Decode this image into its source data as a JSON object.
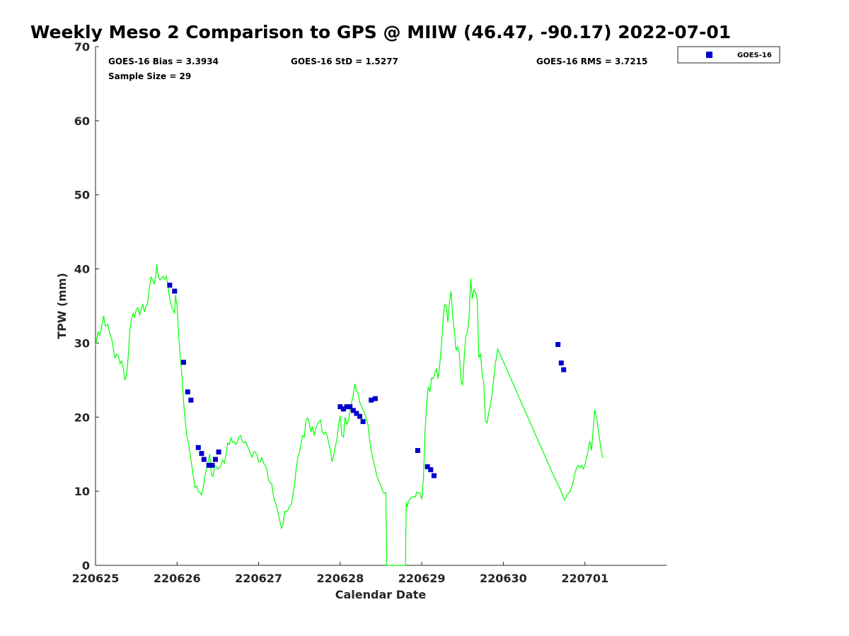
{
  "chart_data": {
    "type": "line",
    "title": "Weekly Meso 2 Comparison to GPS @ MIIW (46.47, -90.17) 2022-07-01",
    "xlabel": "Calendar Date",
    "ylabel": "TPW (mm)",
    "xlim": [
      0,
      7
    ],
    "ylim": [
      0,
      70
    ],
    "x_ticks": [
      0,
      1,
      2,
      3,
      4,
      5,
      6
    ],
    "x_tick_labels": [
      "220625",
      "220626",
      "220627",
      "220628",
      "220629",
      "220630",
      "220701"
    ],
    "y_ticks": [
      0,
      10,
      20,
      30,
      40,
      50,
      60,
      70
    ],
    "y_tick_labels": [
      "0",
      "10",
      "20",
      "30",
      "40",
      "50",
      "60",
      "70"
    ],
    "grid": false,
    "legend": {
      "position": "top-right-outside",
      "entries": [
        "GOES-16"
      ]
    },
    "stats": {
      "bias": "GOES-16 Bias = 3.3934",
      "std": "GOES-16 StD = 1.5277",
      "rms": "GOES-16 RMS = 3.7215",
      "sample": "Sample Size = 29"
    },
    "colors": {
      "gps_line": "#00ff00",
      "goes": "#0000cc"
    },
    "series": [
      {
        "marker": "line",
        "points": [
          [
            0.0,
            29.6
          ],
          [
            0.03,
            31.5
          ],
          [
            0.05,
            31.0
          ],
          [
            0.08,
            32.4
          ],
          [
            0.1,
            33.7
          ],
          [
            0.12,
            32.3
          ],
          [
            0.15,
            32.5
          ],
          [
            0.18,
            31.0
          ],
          [
            0.2,
            30.5
          ],
          [
            0.22,
            29.0
          ],
          [
            0.24,
            28.0
          ],
          [
            0.26,
            28.5
          ],
          [
            0.28,
            28.3
          ],
          [
            0.3,
            27.2
          ],
          [
            0.32,
            27.6
          ],
          [
            0.34,
            26.6
          ],
          [
            0.36,
            25.0
          ],
          [
            0.38,
            25.6
          ],
          [
            0.4,
            28.0
          ],
          [
            0.42,
            31.5
          ],
          [
            0.44,
            33.2
          ],
          [
            0.46,
            34.0
          ],
          [
            0.48,
            33.5
          ],
          [
            0.5,
            34.5
          ],
          [
            0.52,
            34.8
          ],
          [
            0.54,
            33.8
          ],
          [
            0.56,
            34.5
          ],
          [
            0.58,
            35.2
          ],
          [
            0.6,
            34.2
          ],
          [
            0.62,
            35.0
          ],
          [
            0.64,
            35.5
          ],
          [
            0.66,
            37.5
          ],
          [
            0.68,
            38.9
          ],
          [
            0.7,
            38.5
          ],
          [
            0.72,
            38.0
          ],
          [
            0.74,
            39.2
          ],
          [
            0.75,
            40.6
          ],
          [
            0.77,
            39.0
          ],
          [
            0.79,
            38.5
          ],
          [
            0.81,
            38.8
          ],
          [
            0.83,
            39.0
          ],
          [
            0.85,
            38.6
          ],
          [
            0.87,
            39.0
          ],
          [
            0.89,
            37.5
          ],
          [
            0.91,
            36.0
          ],
          [
            0.93,
            35.0
          ],
          [
            0.95,
            34.5
          ],
          [
            0.97,
            34.0
          ],
          [
            0.98,
            36.5
          ],
          [
            1.0,
            35.0
          ],
          [
            1.02,
            31.0
          ],
          [
            1.04,
            28.0
          ],
          [
            1.06,
            25.5
          ],
          [
            1.08,
            22.0
          ],
          [
            1.1,
            19.5
          ],
          [
            1.12,
            17.5
          ],
          [
            1.14,
            16.5
          ],
          [
            1.16,
            15.0
          ],
          [
            1.18,
            13.5
          ],
          [
            1.2,
            12.0
          ],
          [
            1.22,
            10.5
          ],
          [
            1.24,
            10.7
          ],
          [
            1.26,
            10.0
          ],
          [
            1.28,
            9.8
          ],
          [
            1.3,
            9.5
          ],
          [
            1.32,
            10.5
          ],
          [
            1.34,
            12.0
          ],
          [
            1.36,
            13.0
          ],
          [
            1.38,
            14.0
          ],
          [
            1.4,
            15.0
          ],
          [
            1.42,
            12.3
          ],
          [
            1.44,
            12.0
          ],
          [
            1.46,
            13.5
          ],
          [
            1.48,
            13.3
          ],
          [
            1.5,
            13.0
          ],
          [
            1.52,
            13.2
          ],
          [
            1.54,
            13.5
          ],
          [
            1.56,
            14.2
          ],
          [
            1.58,
            13.8
          ],
          [
            1.6,
            15.0
          ],
          [
            1.62,
            16.5
          ],
          [
            1.64,
            16.3
          ],
          [
            1.66,
            17.2
          ],
          [
            1.68,
            16.6
          ],
          [
            1.7,
            16.7
          ],
          [
            1.72,
            16.3
          ],
          [
            1.74,
            16.7
          ],
          [
            1.76,
            17.4
          ],
          [
            1.78,
            17.5
          ],
          [
            1.8,
            16.7
          ],
          [
            1.82,
            16.5
          ],
          [
            1.84,
            16.7
          ],
          [
            1.86,
            16.2
          ],
          [
            1.88,
            15.7
          ],
          [
            1.9,
            15.0
          ],
          [
            1.92,
            14.6
          ],
          [
            1.94,
            15.3
          ],
          [
            1.96,
            15.3
          ],
          [
            1.98,
            14.9
          ],
          [
            2.0,
            13.9
          ],
          [
            2.02,
            14.0
          ],
          [
            2.04,
            14.5
          ],
          [
            2.06,
            13.8
          ],
          [
            2.08,
            13.5
          ],
          [
            2.1,
            13.0
          ],
          [
            2.12,
            11.5
          ],
          [
            2.14,
            11.2
          ],
          [
            2.16,
            11.0
          ],
          [
            2.18,
            9.5
          ],
          [
            2.2,
            8.6
          ],
          [
            2.22,
            8.0
          ],
          [
            2.24,
            7.0
          ],
          [
            2.26,
            6.0
          ],
          [
            2.28,
            5.0
          ],
          [
            2.3,
            5.6
          ],
          [
            2.32,
            7.3
          ],
          [
            2.34,
            7.2
          ],
          [
            2.36,
            7.5
          ],
          [
            2.38,
            8.0
          ],
          [
            2.4,
            8.2
          ],
          [
            2.42,
            9.5
          ],
          [
            2.44,
            11.0
          ],
          [
            2.46,
            13.0
          ],
          [
            2.48,
            14.5
          ],
          [
            2.5,
            15.2
          ],
          [
            2.52,
            16.5
          ],
          [
            2.54,
            17.5
          ],
          [
            2.56,
            17.3
          ],
          [
            2.58,
            19.5
          ],
          [
            2.6,
            19.9
          ],
          [
            2.62,
            19.2
          ],
          [
            2.64,
            18.0
          ],
          [
            2.66,
            18.7
          ],
          [
            2.68,
            17.5
          ],
          [
            2.7,
            18.5
          ],
          [
            2.72,
            19.0
          ],
          [
            2.74,
            19.4
          ],
          [
            2.76,
            19.6
          ],
          [
            2.78,
            18.0
          ],
          [
            2.8,
            17.7
          ],
          [
            2.82,
            18.0
          ],
          [
            2.84,
            17.5
          ],
          [
            2.86,
            16.5
          ],
          [
            2.88,
            15.5
          ],
          [
            2.9,
            14.0
          ],
          [
            2.92,
            14.8
          ],
          [
            2.94,
            16.0
          ],
          [
            2.96,
            17.0
          ],
          [
            2.98,
            19.0
          ],
          [
            3.0,
            20.2
          ],
          [
            3.02,
            17.5
          ],
          [
            3.04,
            17.3
          ],
          [
            3.06,
            20.0
          ],
          [
            3.08,
            19.0
          ],
          [
            3.1,
            19.5
          ],
          [
            3.12,
            21.0
          ],
          [
            3.14,
            22.0
          ],
          [
            3.16,
            23.0
          ],
          [
            3.18,
            24.5
          ],
          [
            3.2,
            23.5
          ],
          [
            3.22,
            23.2
          ],
          [
            3.24,
            22.0
          ],
          [
            3.26,
            21.5
          ],
          [
            3.28,
            21.0
          ],
          [
            3.3,
            20.5
          ],
          [
            3.32,
            19.8
          ],
          [
            3.34,
            19.0
          ],
          [
            3.36,
            17.0
          ],
          [
            3.38,
            15.5
          ],
          [
            3.4,
            14.5
          ],
          [
            3.42,
            13.5
          ],
          [
            3.44,
            12.5
          ],
          [
            3.46,
            11.7
          ],
          [
            3.48,
            11.2
          ],
          [
            3.5,
            10.8
          ],
          [
            3.52,
            10.0
          ],
          [
            3.54,
            9.7
          ],
          [
            3.56,
            9.8
          ],
          [
            3.57,
            0.0
          ],
          [
            3.8,
            0.0
          ],
          [
            3.81,
            8.5
          ],
          [
            3.82,
            7.9
          ],
          [
            3.84,
            8.7
          ],
          [
            3.86,
            9.0
          ],
          [
            3.88,
            9.2
          ],
          [
            3.9,
            9.3
          ],
          [
            3.92,
            9.2
          ],
          [
            3.94,
            9.9
          ],
          [
            3.96,
            9.8
          ],
          [
            3.98,
            9.7
          ],
          [
            4.0,
            8.9
          ],
          [
            4.02,
            11.5
          ],
          [
            4.04,
            18.0
          ],
          [
            4.06,
            22.0
          ],
          [
            4.08,
            24.0
          ],
          [
            4.1,
            23.5
          ],
          [
            4.12,
            25.3
          ],
          [
            4.14,
            25.2
          ],
          [
            4.16,
            26.0
          ],
          [
            4.18,
            26.5
          ],
          [
            4.2,
            25.2
          ],
          [
            4.22,
            27.0
          ],
          [
            4.24,
            29.5
          ],
          [
            4.26,
            33.0
          ],
          [
            4.28,
            35.2
          ],
          [
            4.3,
            35.0
          ],
          [
            4.32,
            32.8
          ],
          [
            4.34,
            35.5
          ],
          [
            4.36,
            37.0
          ],
          [
            4.38,
            33.5
          ],
          [
            4.4,
            31.5
          ],
          [
            4.42,
            29.0
          ],
          [
            4.44,
            29.5
          ],
          [
            4.46,
            28.5
          ],
          [
            4.48,
            25.0
          ],
          [
            4.5,
            24.3
          ],
          [
            4.52,
            28.0
          ],
          [
            4.54,
            31.0
          ],
          [
            4.56,
            31.5
          ],
          [
            4.58,
            33.5
          ],
          [
            4.6,
            38.7
          ],
          [
            4.62,
            36.0
          ],
          [
            4.64,
            37.2
          ],
          [
            4.66,
            36.8
          ],
          [
            4.68,
            36.0
          ],
          [
            4.7,
            28.0
          ],
          [
            4.72,
            28.5
          ],
          [
            4.74,
            26.0
          ],
          [
            4.76,
            24.5
          ],
          [
            4.78,
            19.5
          ],
          [
            4.8,
            19.2
          ],
          [
            4.82,
            20.5
          ],
          [
            4.84,
            21.5
          ],
          [
            4.86,
            23.0
          ],
          [
            4.88,
            25.0
          ],
          [
            4.9,
            27.0
          ],
          [
            4.93,
            29.2
          ],
          [
            5.0,
            27.5
          ],
          [
            5.1,
            25.0
          ],
          [
            5.2,
            22.5
          ],
          [
            5.3,
            20.0
          ],
          [
            5.4,
            17.5
          ],
          [
            5.5,
            15.0
          ],
          [
            5.6,
            12.5
          ],
          [
            5.7,
            10.2
          ],
          [
            5.75,
            8.8
          ],
          [
            5.78,
            9.5
          ],
          [
            5.82,
            10.0
          ],
          [
            5.85,
            11.0
          ],
          [
            5.88,
            12.5
          ],
          [
            5.9,
            13.2
          ],
          [
            5.92,
            13.5
          ],
          [
            5.94,
            13.2
          ],
          [
            5.96,
            13.5
          ],
          [
            5.98,
            13.0
          ],
          [
            6.0,
            13.5
          ],
          [
            6.03,
            15.0
          ],
          [
            6.06,
            16.8
          ],
          [
            6.08,
            15.5
          ],
          [
            6.1,
            18.0
          ],
          [
            6.12,
            21.0
          ],
          [
            6.15,
            19.5
          ],
          [
            6.18,
            17.0
          ],
          [
            6.2,
            15.5
          ],
          [
            6.22,
            14.5
          ]
        ]
      },
      {
        "name": "GOES-16",
        "marker": "square",
        "points": [
          [
            0.91,
            37.8
          ],
          [
            0.97,
            37.0
          ],
          [
            1.08,
            27.4
          ],
          [
            1.13,
            23.4
          ],
          [
            1.17,
            22.3
          ],
          [
            1.26,
            15.9
          ],
          [
            1.3,
            15.1
          ],
          [
            1.33,
            14.3
          ],
          [
            1.39,
            13.5
          ],
          [
            1.43,
            13.5
          ],
          [
            1.47,
            14.3
          ],
          [
            1.51,
            15.3
          ],
          [
            3.0,
            21.4
          ],
          [
            3.04,
            21.1
          ],
          [
            3.08,
            21.4
          ],
          [
            3.12,
            21.4
          ],
          [
            3.16,
            20.9
          ],
          [
            3.2,
            20.5
          ],
          [
            3.24,
            20.1
          ],
          [
            3.28,
            19.4
          ],
          [
            3.38,
            22.3
          ],
          [
            3.43,
            22.5
          ],
          [
            3.95,
            15.5
          ],
          [
            4.07,
            13.3
          ],
          [
            4.11,
            12.9
          ],
          [
            4.15,
            12.1
          ],
          [
            5.67,
            29.8
          ],
          [
            5.71,
            27.3
          ],
          [
            5.74,
            26.4
          ]
        ]
      }
    ]
  }
}
